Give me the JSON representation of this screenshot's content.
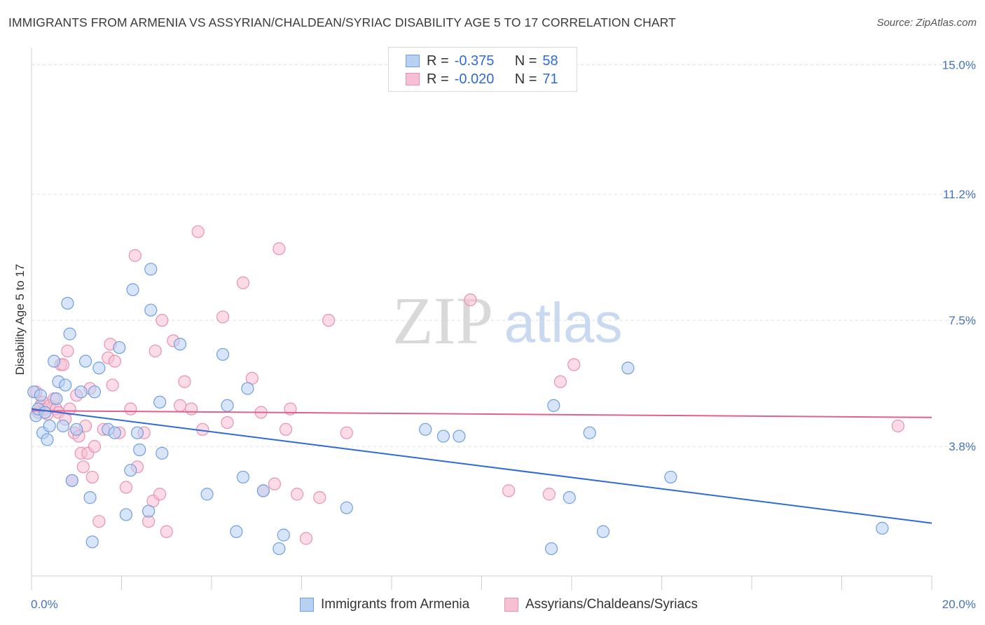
{
  "title": "IMMIGRANTS FROM ARMENIA VS ASSYRIAN/CHALDEAN/SYRIAC DISABILITY AGE 5 TO 17 CORRELATION CHART",
  "source": "Source: ZipAtlas.com",
  "watermark": {
    "zip": "ZIP",
    "atlas": "atlas"
  },
  "legend": {
    "rows": [
      {
        "r_label": "R =",
        "r_value": "-0.375",
        "n_label": "N =",
        "n_value": "58"
      },
      {
        "r_label": "R =",
        "r_value": "-0.020",
        "n_label": "N =",
        "n_value": "71"
      }
    ]
  },
  "bottom_legend": {
    "series1": "Immigrants from Armenia",
    "series2": "Assyrians/Chaldeans/Syriacs"
  },
  "colors": {
    "blue_fill": "#b8d0f2",
    "blue_stroke": "#6f9fe0",
    "blue_line": "#2f6bd6",
    "pink_fill": "#f7c0d2",
    "pink_stroke": "#e892b0",
    "pink_line": "#e0608f",
    "tick_text": "#4472c4"
  },
  "chart_data": {
    "type": "scatter",
    "xlabel": "",
    "ylabel": "Disability Age 5 to 17",
    "xlim": [
      0,
      20
    ],
    "ylim": [
      0,
      15.5
    ],
    "x_tick_labels": [
      {
        "value": 0,
        "label": "0.0%"
      },
      {
        "value": 20,
        "label": "20.0%"
      }
    ],
    "y_tick_labels": [
      {
        "value": 3.8,
        "label": "3.8%"
      },
      {
        "value": 7.5,
        "label": "7.5%"
      },
      {
        "value": 11.2,
        "label": "11.2%"
      },
      {
        "value": 15.0,
        "label": "15.0%"
      }
    ],
    "grid": true,
    "series": [
      {
        "name": "Immigrants from Armenia",
        "color": "#2f6bd6",
        "trend": {
          "x": [
            0,
            20
          ],
          "y": [
            4.9,
            1.55
          ]
        },
        "points": [
          [
            0.05,
            5.4
          ],
          [
            0.1,
            4.7
          ],
          [
            0.15,
            4.9
          ],
          [
            0.2,
            5.3
          ],
          [
            0.25,
            4.2
          ],
          [
            0.3,
            4.8
          ],
          [
            0.35,
            4.0
          ],
          [
            0.4,
            4.4
          ],
          [
            0.5,
            6.3
          ],
          [
            0.55,
            5.2
          ],
          [
            0.6,
            5.7
          ],
          [
            0.7,
            4.4
          ],
          [
            0.75,
            5.6
          ],
          [
            0.8,
            8.0
          ],
          [
            0.85,
            7.1
          ],
          [
            0.9,
            2.8
          ],
          [
            1.0,
            4.3
          ],
          [
            1.1,
            5.4
          ],
          [
            1.2,
            6.3
          ],
          [
            1.3,
            2.3
          ],
          [
            1.35,
            1.0
          ],
          [
            1.4,
            5.4
          ],
          [
            1.5,
            6.1
          ],
          [
            1.7,
            4.3
          ],
          [
            1.85,
            4.2
          ],
          [
            1.95,
            6.7
          ],
          [
            2.1,
            1.8
          ],
          [
            2.2,
            3.1
          ],
          [
            2.25,
            8.4
          ],
          [
            2.35,
            4.2
          ],
          [
            2.4,
            3.7
          ],
          [
            2.6,
            1.9
          ],
          [
            2.65,
            7.8
          ],
          [
            2.65,
            9.0
          ],
          [
            2.85,
            5.1
          ],
          [
            2.9,
            3.6
          ],
          [
            3.3,
            6.8
          ],
          [
            3.9,
            2.4
          ],
          [
            4.25,
            6.5
          ],
          [
            4.35,
            5.0
          ],
          [
            4.55,
            1.3
          ],
          [
            4.7,
            2.9
          ],
          [
            4.8,
            5.5
          ],
          [
            5.15,
            2.5
          ],
          [
            5.5,
            0.8
          ],
          [
            5.6,
            1.2
          ],
          [
            7.0,
            2.0
          ],
          [
            8.75,
            4.3
          ],
          [
            9.15,
            4.1
          ],
          [
            9.5,
            4.1
          ],
          [
            11.55,
            0.8
          ],
          [
            11.6,
            5.0
          ],
          [
            11.95,
            2.3
          ],
          [
            12.4,
            4.2
          ],
          [
            12.7,
            1.3
          ],
          [
            13.25,
            6.1
          ],
          [
            14.2,
            2.9
          ],
          [
            18.9,
            1.4
          ]
        ]
      },
      {
        "name": "Assyrians/Chaldeans/Syriacs",
        "color": "#e0608f",
        "trend": {
          "x": [
            0,
            20
          ],
          "y": [
            4.85,
            4.65
          ]
        },
        "points": [
          [
            0.1,
            5.4
          ],
          [
            0.15,
            4.8
          ],
          [
            0.2,
            5.0
          ],
          [
            0.25,
            5.1
          ],
          [
            0.3,
            4.9
          ],
          [
            0.35,
            4.75
          ],
          [
            0.4,
            5.0
          ],
          [
            0.5,
            5.2
          ],
          [
            0.55,
            4.9
          ],
          [
            0.6,
            4.8
          ],
          [
            0.65,
            6.2
          ],
          [
            0.7,
            6.2
          ],
          [
            0.75,
            4.6
          ],
          [
            0.8,
            6.6
          ],
          [
            0.85,
            4.9
          ],
          [
            0.9,
            2.8
          ],
          [
            0.95,
            4.2
          ],
          [
            1.0,
            5.3
          ],
          [
            1.05,
            4.1
          ],
          [
            1.1,
            3.6
          ],
          [
            1.15,
            3.2
          ],
          [
            1.2,
            4.4
          ],
          [
            1.25,
            3.6
          ],
          [
            1.3,
            5.5
          ],
          [
            1.35,
            2.9
          ],
          [
            1.4,
            3.8
          ],
          [
            1.5,
            1.6
          ],
          [
            1.6,
            4.3
          ],
          [
            1.7,
            6.4
          ],
          [
            1.75,
            6.8
          ],
          [
            1.8,
            5.6
          ],
          [
            1.85,
            6.3
          ],
          [
            1.95,
            4.2
          ],
          [
            2.1,
            2.6
          ],
          [
            2.2,
            4.9
          ],
          [
            2.3,
            9.4
          ],
          [
            2.35,
            3.2
          ],
          [
            2.5,
            4.2
          ],
          [
            2.6,
            1.6
          ],
          [
            2.7,
            2.2
          ],
          [
            2.75,
            6.6
          ],
          [
            2.85,
            2.4
          ],
          [
            2.9,
            7.5
          ],
          [
            3.0,
            1.3
          ],
          [
            3.15,
            6.9
          ],
          [
            3.3,
            5.0
          ],
          [
            3.4,
            5.7
          ],
          [
            3.55,
            4.9
          ],
          [
            3.7,
            10.1
          ],
          [
            3.8,
            4.3
          ],
          [
            4.25,
            7.6
          ],
          [
            4.35,
            4.5
          ],
          [
            4.7,
            8.6
          ],
          [
            4.9,
            5.8
          ],
          [
            5.1,
            4.8
          ],
          [
            5.15,
            2.5
          ],
          [
            5.4,
            2.7
          ],
          [
            5.5,
            9.6
          ],
          [
            5.65,
            4.3
          ],
          [
            5.75,
            4.9
          ],
          [
            5.9,
            2.4
          ],
          [
            6.1,
            1.1
          ],
          [
            6.4,
            2.3
          ],
          [
            6.6,
            7.5
          ],
          [
            7.0,
            4.2
          ],
          [
            9.75,
            8.1
          ],
          [
            10.6,
            2.5
          ],
          [
            11.5,
            2.4
          ],
          [
            11.75,
            5.7
          ],
          [
            12.05,
            6.2
          ],
          [
            19.25,
            4.4
          ]
        ]
      }
    ]
  }
}
